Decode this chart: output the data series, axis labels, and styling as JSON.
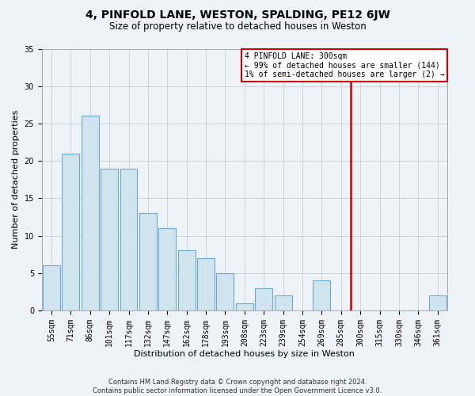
{
  "title1": "4, PINFOLD LANE, WESTON, SPALDING, PE12 6JW",
  "title2": "Size of property relative to detached houses in Weston",
  "xlabel": "Distribution of detached houses by size in Weston",
  "ylabel": "Number of detached properties",
  "footer1": "Contains HM Land Registry data © Crown copyright and database right 2024.",
  "footer2": "Contains public sector information licensed under the Open Government Licence v3.0.",
  "categories": [
    "55sqm",
    "71sqm",
    "86sqm",
    "101sqm",
    "117sqm",
    "132sqm",
    "147sqm",
    "162sqm",
    "178sqm",
    "193sqm",
    "208sqm",
    "223sqm",
    "239sqm",
    "254sqm",
    "269sqm",
    "285sqm",
    "300sqm",
    "315sqm",
    "330sqm",
    "346sqm",
    "361sqm"
  ],
  "values": [
    6,
    21,
    26,
    19,
    19,
    13,
    11,
    8,
    7,
    5,
    1,
    3,
    2,
    0,
    4,
    0,
    0,
    0,
    0,
    0,
    2
  ],
  "bar_color": "#d0e4f0",
  "bar_edge_color": "#6aaad4",
  "annotation_line1": "4 PINFOLD LANE: 300sqm",
  "annotation_line2": "← 99% of detached houses are smaller (144)",
  "annotation_line3": "1% of semi-detached houses are larger (2) →",
  "annotation_box_edgecolor": "#cc0000",
  "vline_color": "#cc0000",
  "vline_x_index": 16,
  "ylim_max": 35,
  "yticks": [
    0,
    5,
    10,
    15,
    20,
    25,
    30,
    35
  ],
  "grid_color": "#cccccc",
  "background_color": "#eef3f8",
  "title1_fontsize": 10,
  "title2_fontsize": 8.5,
  "axis_label_fontsize": 8,
  "tick_fontsize": 7,
  "footer_fontsize": 6
}
